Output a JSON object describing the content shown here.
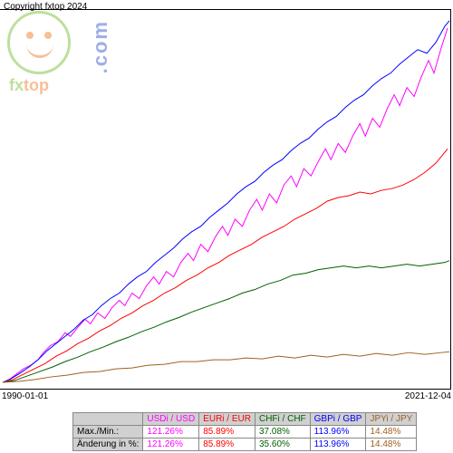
{
  "copyright": "Copyright fxtop 2024",
  "logo": {
    "brand_fx": "fx",
    "brand_top": "top",
    "domain": ".com"
  },
  "chart": {
    "type": "line",
    "background_color": "#ffffff",
    "x_start_label": "1990-01-01",
    "x_end_label": "2021-12-04",
    "xlim": [
      0,
      498
    ],
    "ylim": [
      0,
      420
    ],
    "line_width": 1,
    "series": [
      {
        "name": "USDi / USD",
        "color": "#ff00ff",
        "points": [
          [
            3,
            413
          ],
          [
            10,
            410
          ],
          [
            18,
            404
          ],
          [
            26,
            398
          ],
          [
            34,
            394
          ],
          [
            42,
            388
          ],
          [
            48,
            380
          ],
          [
            56,
            372
          ],
          [
            64,
            368
          ],
          [
            72,
            358
          ],
          [
            78,
            362
          ],
          [
            86,
            352
          ],
          [
            94,
            343
          ],
          [
            100,
            348
          ],
          [
            108,
            336
          ],
          [
            116,
            342
          ],
          [
            124,
            330
          ],
          [
            132,
            322
          ],
          [
            138,
            328
          ],
          [
            146,
            314
          ],
          [
            154,
            320
          ],
          [
            162,
            306
          ],
          [
            170,
            296
          ],
          [
            176,
            304
          ],
          [
            184,
            290
          ],
          [
            192,
            296
          ],
          [
            200,
            280
          ],
          [
            208,
            270
          ],
          [
            214,
            278
          ],
          [
            222,
            260
          ],
          [
            230,
            268
          ],
          [
            238,
            252
          ],
          [
            246,
            240
          ],
          [
            252,
            250
          ],
          [
            260,
            232
          ],
          [
            268,
            240
          ],
          [
            276,
            222
          ],
          [
            284,
            210
          ],
          [
            290,
            222
          ],
          [
            298,
            204
          ],
          [
            306,
            214
          ],
          [
            314,
            194
          ],
          [
            322,
            184
          ],
          [
            328,
            196
          ],
          [
            336,
            176
          ],
          [
            344,
            184
          ],
          [
            352,
            168
          ],
          [
            360,
            154
          ],
          [
            366,
            166
          ],
          [
            374,
            148
          ],
          [
            382,
            158
          ],
          [
            390,
            140
          ],
          [
            398,
            126
          ],
          [
            404,
            140
          ],
          [
            412,
            120
          ],
          [
            420,
            130
          ],
          [
            428,
            110
          ],
          [
            436,
            94
          ],
          [
            442,
            106
          ],
          [
            450,
            86
          ],
          [
            458,
            96
          ],
          [
            466,
            74
          ],
          [
            474,
            56
          ],
          [
            480,
            70
          ],
          [
            488,
            42
          ],
          [
            495,
            20
          ]
        ]
      },
      {
        "name": "GBPi / GBP",
        "color": "#0000ff",
        "points": [
          [
            3,
            413
          ],
          [
            12,
            409
          ],
          [
            22,
            403
          ],
          [
            32,
            396
          ],
          [
            42,
            388
          ],
          [
            52,
            378
          ],
          [
            62,
            370
          ],
          [
            72,
            362
          ],
          [
            82,
            354
          ],
          [
            92,
            344
          ],
          [
            102,
            338
          ],
          [
            112,
            328
          ],
          [
            122,
            320
          ],
          [
            132,
            314
          ],
          [
            142,
            304
          ],
          [
            152,
            296
          ],
          [
            162,
            290
          ],
          [
            172,
            280
          ],
          [
            182,
            272
          ],
          [
            192,
            264
          ],
          [
            202,
            254
          ],
          [
            212,
            246
          ],
          [
            222,
            240
          ],
          [
            232,
            230
          ],
          [
            242,
            222
          ],
          [
            252,
            214
          ],
          [
            262,
            204
          ],
          [
            272,
            196
          ],
          [
            282,
            190
          ],
          [
            292,
            180
          ],
          [
            302,
            172
          ],
          [
            312,
            166
          ],
          [
            322,
            156
          ],
          [
            332,
            148
          ],
          [
            342,
            142
          ],
          [
            352,
            132
          ],
          [
            362,
            124
          ],
          [
            372,
            118
          ],
          [
            382,
            108
          ],
          [
            392,
            100
          ],
          [
            402,
            94
          ],
          [
            412,
            84
          ],
          [
            422,
            76
          ],
          [
            432,
            70
          ],
          [
            442,
            60
          ],
          [
            452,
            52
          ],
          [
            462,
            44
          ],
          [
            472,
            48
          ],
          [
            482,
            36
          ],
          [
            492,
            18
          ],
          [
            497,
            12
          ]
        ]
      },
      {
        "name": "EURi / EUR",
        "color": "#ff0000",
        "points": [
          [
            3,
            413
          ],
          [
            14,
            410
          ],
          [
            26,
            404
          ],
          [
            38,
            398
          ],
          [
            50,
            392
          ],
          [
            62,
            384
          ],
          [
            74,
            378
          ],
          [
            86,
            370
          ],
          [
            98,
            364
          ],
          [
            110,
            356
          ],
          [
            122,
            350
          ],
          [
            134,
            342
          ],
          [
            146,
            336
          ],
          [
            158,
            328
          ],
          [
            170,
            322
          ],
          [
            182,
            314
          ],
          [
            194,
            308
          ],
          [
            206,
            300
          ],
          [
            218,
            294
          ],
          [
            230,
            286
          ],
          [
            242,
            280
          ],
          [
            254,
            272
          ],
          [
            266,
            266
          ],
          [
            278,
            260
          ],
          [
            290,
            252
          ],
          [
            302,
            246
          ],
          [
            314,
            240
          ],
          [
            326,
            232
          ],
          [
            338,
            226
          ],
          [
            350,
            220
          ],
          [
            362,
            212
          ],
          [
            374,
            208
          ],
          [
            386,
            206
          ],
          [
            398,
            202
          ],
          [
            410,
            204
          ],
          [
            422,
            200
          ],
          [
            434,
            198
          ],
          [
            446,
            194
          ],
          [
            458,
            188
          ],
          [
            470,
            180
          ],
          [
            482,
            170
          ],
          [
            495,
            154
          ]
        ]
      },
      {
        "name": "CHFi / CHF",
        "color": "#006000",
        "points": [
          [
            3,
            413
          ],
          [
            16,
            411
          ],
          [
            30,
            406
          ],
          [
            44,
            401
          ],
          [
            58,
            396
          ],
          [
            72,
            390
          ],
          [
            86,
            385
          ],
          [
            100,
            379
          ],
          [
            114,
            374
          ],
          [
            128,
            368
          ],
          [
            142,
            363
          ],
          [
            156,
            357
          ],
          [
            170,
            352
          ],
          [
            184,
            346
          ],
          [
            198,
            341
          ],
          [
            212,
            335
          ],
          [
            226,
            330
          ],
          [
            240,
            325
          ],
          [
            254,
            320
          ],
          [
            268,
            314
          ],
          [
            282,
            310
          ],
          [
            296,
            304
          ],
          [
            310,
            300
          ],
          [
            324,
            294
          ],
          [
            338,
            292
          ],
          [
            352,
            288
          ],
          [
            366,
            286
          ],
          [
            380,
            284
          ],
          [
            394,
            286
          ],
          [
            408,
            284
          ],
          [
            422,
            286
          ],
          [
            436,
            284
          ],
          [
            450,
            282
          ],
          [
            464,
            284
          ],
          [
            478,
            282
          ],
          [
            492,
            280
          ],
          [
            497,
            278
          ]
        ]
      },
      {
        "name": "JPYi / JPY",
        "color": "#a06020",
        "points": [
          [
            3,
            413
          ],
          [
            20,
            412
          ],
          [
            38,
            410
          ],
          [
            56,
            407
          ],
          [
            74,
            405
          ],
          [
            92,
            402
          ],
          [
            110,
            401
          ],
          [
            128,
            398
          ],
          [
            146,
            397
          ],
          [
            164,
            394
          ],
          [
            182,
            393
          ],
          [
            200,
            390
          ],
          [
            218,
            390
          ],
          [
            236,
            388
          ],
          [
            254,
            388
          ],
          [
            272,
            386
          ],
          [
            290,
            387
          ],
          [
            308,
            384
          ],
          [
            326,
            386
          ],
          [
            344,
            383
          ],
          [
            362,
            385
          ],
          [
            380,
            382
          ],
          [
            398,
            384
          ],
          [
            416,
            381
          ],
          [
            434,
            383
          ],
          [
            452,
            380
          ],
          [
            470,
            382
          ],
          [
            488,
            380
          ],
          [
            497,
            379
          ]
        ]
      }
    ]
  },
  "table": {
    "row_labels": [
      "Max./Min.:",
      "Änderung in %:"
    ],
    "columns": [
      {
        "header": "USDi / USD",
        "color": "#ff00ff",
        "maxmin": "121.26%",
        "change": "121.26%"
      },
      {
        "header": "EURi / EUR",
        "color": "#ff0000",
        "maxmin": "85.89%",
        "change": "85.89%"
      },
      {
        "header": "CHFi / CHF",
        "color": "#006000",
        "maxmin": "37.08%",
        "change": "35.60%"
      },
      {
        "header": "GBPi / GBP",
        "color": "#0000ff",
        "maxmin": "113.96%",
        "change": "113.96%"
      },
      {
        "header": "JPYi / JPY",
        "color": "#a06020",
        "maxmin": "14.48%",
        "change": "14.48%"
      }
    ]
  }
}
